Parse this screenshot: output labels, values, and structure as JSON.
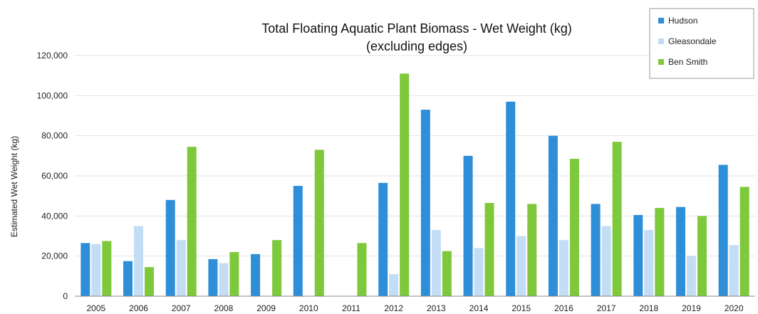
{
  "chart_data": {
    "type": "bar",
    "title": [
      "Total Floating Aquatic Plant Biomass - Wet Weight (kg)",
      "(excluding edges)"
    ],
    "xlabel": "",
    "ylabel": "Estimated Wet Weight (kg)",
    "ylim": [
      0,
      120000
    ],
    "yticks": [
      "0",
      "20,000",
      "40,000",
      "60,000",
      "80,000",
      "100,000",
      "120,000"
    ],
    "grid": true,
    "legend_position": "top-right",
    "categories": [
      "2005",
      "2006",
      "2007",
      "2008",
      "2009",
      "2010",
      "2011",
      "2012",
      "2013",
      "2014",
      "2015",
      "2016",
      "2017",
      "2018",
      "2019",
      "2020"
    ],
    "series": [
      {
        "name": "Hudson",
        "color": "#2e8fd8",
        "values": [
          26500,
          17500,
          48000,
          18500,
          21000,
          55000,
          0,
          56500,
          93000,
          70000,
          97000,
          80000,
          46000,
          40500,
          44500,
          65500
        ]
      },
      {
        "name": "Gleasondale",
        "color": "#c3ddf4",
        "values": [
          26000,
          35000,
          28000,
          16500,
          0,
          0,
          0,
          11000,
          33000,
          24000,
          30000,
          28000,
          35000,
          33000,
          20000,
          25500
        ]
      },
      {
        "name": "Ben Smith",
        "color": "#7ec83c",
        "values": [
          27500,
          14500,
          74500,
          22000,
          28000,
          73000,
          26500,
          111000,
          22500,
          46500,
          46000,
          68500,
          77000,
          44000,
          40000,
          54500
        ]
      }
    ]
  }
}
